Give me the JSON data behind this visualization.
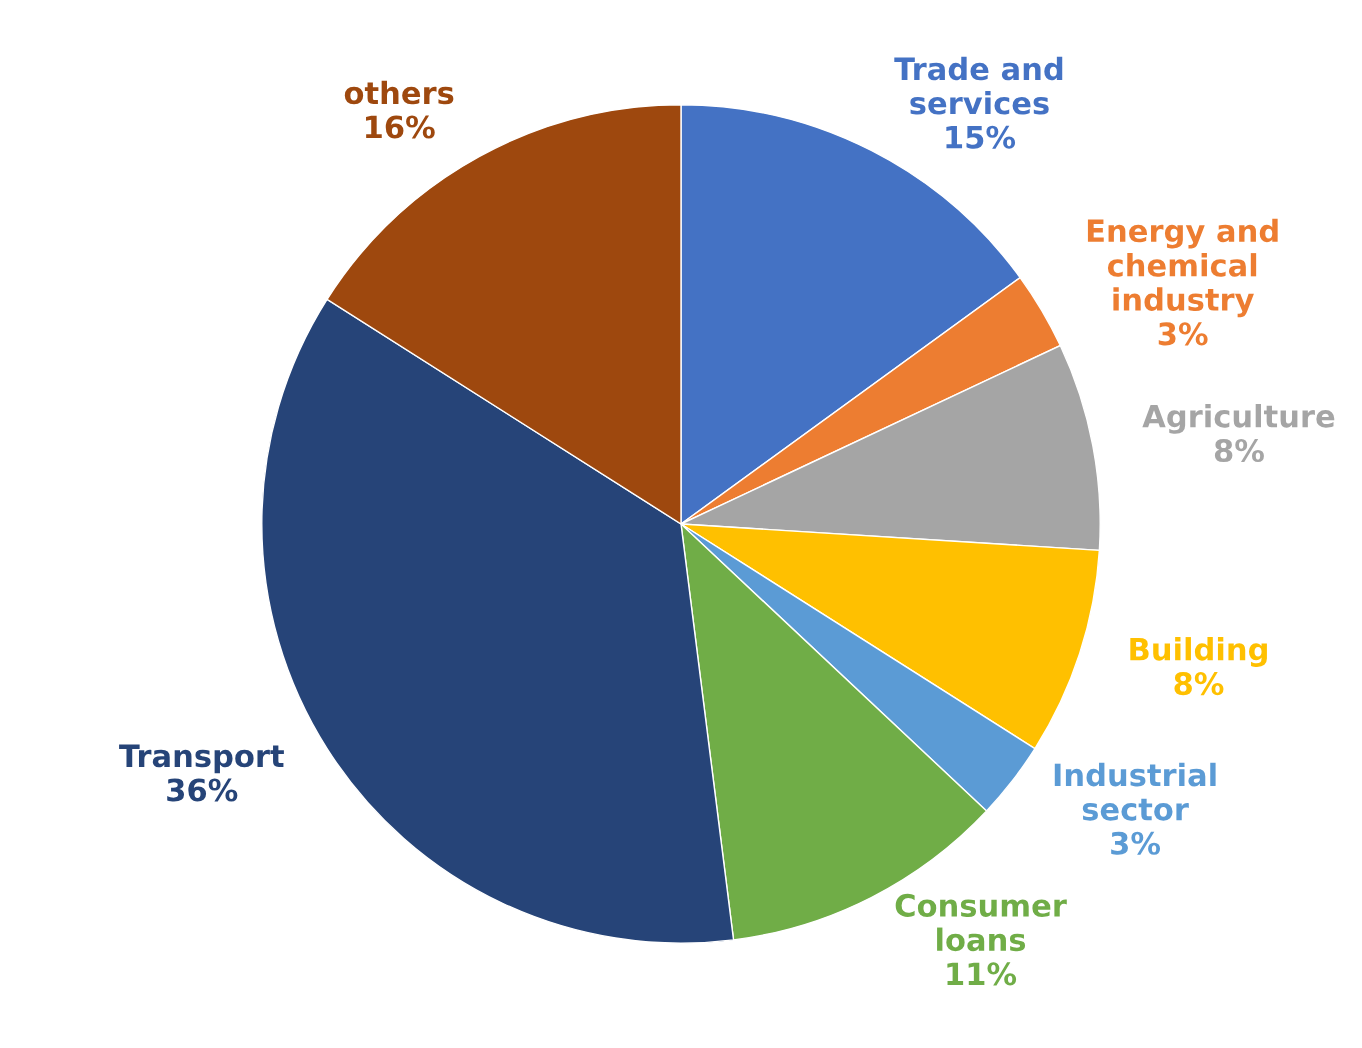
{
  "chart_data": {
    "type": "pie",
    "categories": [
      "Trade and\nservices",
      "Energy and\nchemical\nindustry",
      "Agriculture",
      "Building",
      "Industrial\nsector",
      "Consumer\nloans",
      "Transport",
      "others"
    ],
    "values": [
      15,
      3,
      8,
      8,
      3,
      11,
      36,
      16
    ],
    "value_labels": [
      "15%",
      "3%",
      "8%",
      "8%",
      "3%",
      "11%",
      "36%",
      "16%"
    ],
    "colors": [
      "#4472c4",
      "#ed7d31",
      "#a5a5a5",
      "#ffc000",
      "#5b9bd5",
      "#70ad47",
      "#264478",
      "#9e480e"
    ],
    "legend": false
  }
}
